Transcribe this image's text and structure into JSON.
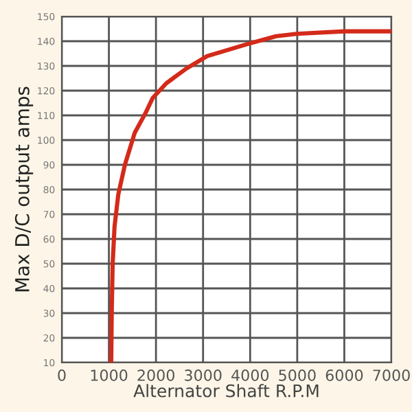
{
  "chart_data": {
    "type": "line",
    "xlabel": "Alternator Shaft R.P.M",
    "ylabel": "Max D/C output amps",
    "series": [
      {
        "color": "#d42a1a",
        "x": [
          1050,
          1060,
          1080,
          1120,
          1200,
          1340,
          1550,
          1780,
          1930,
          2220,
          2650,
          3090,
          3970,
          4550,
          4990,
          6000,
          6970
        ],
        "values": [
          10,
          30,
          50,
          65,
          78,
          90,
          103,
          111,
          117,
          123,
          129,
          134,
          139,
          142,
          143,
          144,
          144
        ]
      }
    ],
    "xlim": [
      0,
      7000
    ],
    "xticks": [
      0,
      1000,
      2000,
      3000,
      4000,
      5000,
      6000,
      7000
    ],
    "ylim": [
      10,
      150
    ],
    "yticks": [
      10,
      20,
      30,
      40,
      50,
      60,
      70,
      80,
      90,
      100,
      110,
      120,
      130,
      140,
      150
    ],
    "grid": true,
    "marker": "none",
    "line_style": "solid"
  }
}
